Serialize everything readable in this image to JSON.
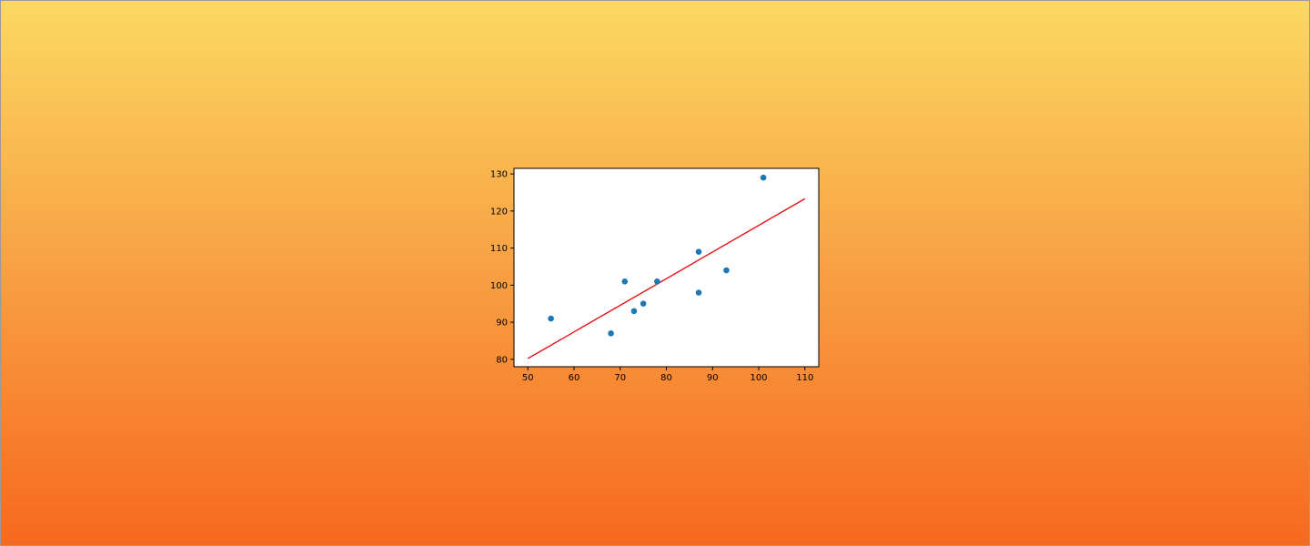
{
  "chart_data": {
    "type": "scatter",
    "title": "",
    "xlabel": "",
    "ylabel": "",
    "xlim": [
      47,
      113
    ],
    "ylim": [
      78,
      131.5
    ],
    "x_ticks": [
      50,
      60,
      70,
      80,
      90,
      100,
      110
    ],
    "y_ticks": [
      80,
      90,
      100,
      110,
      120,
      130
    ],
    "grid": false,
    "legend": "none",
    "points": {
      "x": [
        55,
        68,
        71,
        73,
        75,
        78,
        87,
        87,
        93,
        101
      ],
      "y": [
        91,
        87,
        101,
        93,
        95,
        101,
        98,
        109,
        104,
        129
      ]
    },
    "regression_line": {
      "x": [
        50,
        110
      ],
      "y": [
        80.2,
        123.3
      ]
    },
    "colors": {
      "points": "#1f77b4",
      "line": "#e8121a",
      "plot_background": "#ffffff",
      "axes": "#000000"
    }
  }
}
